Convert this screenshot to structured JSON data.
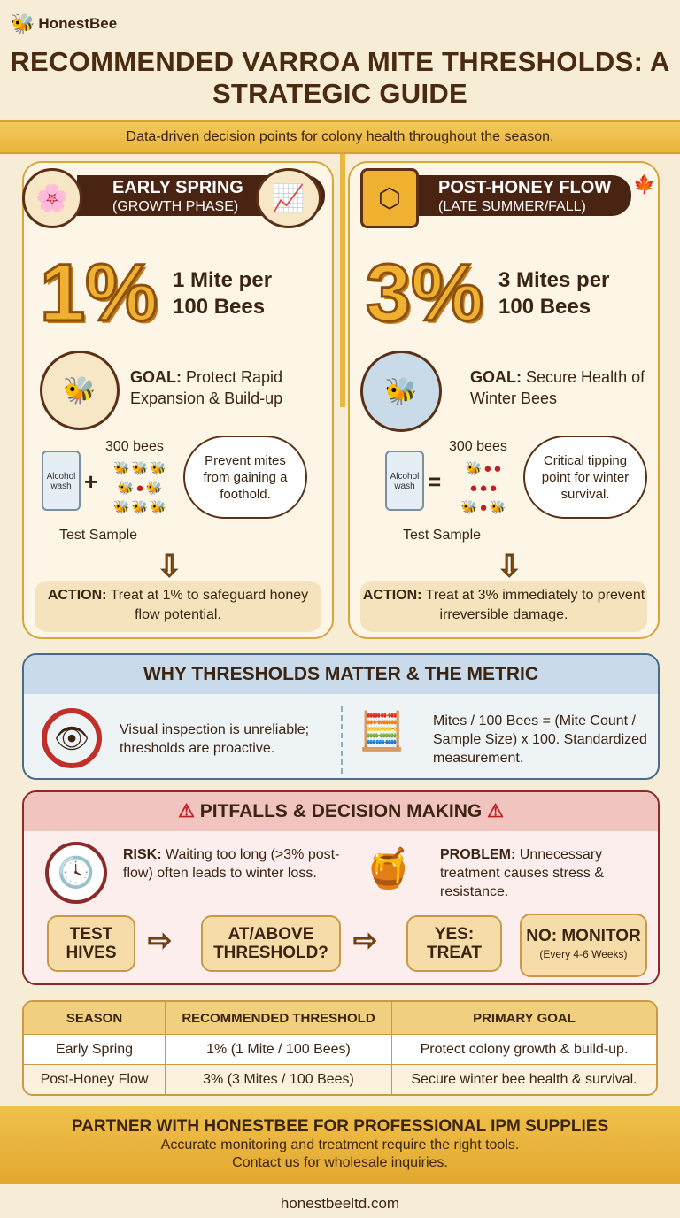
{
  "brand": {
    "name": "HonestBee"
  },
  "title": "RECOMMENDED VARROA MITE THRESHOLDS: A STRATEGIC GUIDE",
  "subtitle": "Data-driven decision points for colony health throughout the season.",
  "cards": [
    {
      "title": "EARLY SPRING",
      "phase": "(GROWTH PHASE)",
      "percent": "1%",
      "rate": "1 Mite per 100 Bees",
      "goal_label": "GOAL:",
      "goal": "Protect Rapid Expansion & Build-up",
      "bottle": "Alcohol wash",
      "operator": "+",
      "bees_label": "300 bees",
      "sample_label": "Test Sample",
      "cloud": "Prevent mites from gaining a foothold.",
      "action_label": "ACTION:",
      "action": "Treat at 1% to safeguard honey flow potential."
    },
    {
      "title": "POST-HONEY FLOW",
      "phase": "(LATE SUMMER/FALL)",
      "percent": "3%",
      "rate": "3 Mites per 100 Bees",
      "goal_label": "GOAL:",
      "goal": "Secure Health of Winter Bees",
      "bottle": "Alcohol wash",
      "operator": "=",
      "bees_label": "300 bees",
      "sample_label": "Test Sample",
      "cloud": "Critical tipping point for winter survival.",
      "action_label": "ACTION:",
      "action": "Treat at 3% immediately to prevent irreversible damage."
    }
  ],
  "why": {
    "title": "WHY THRESHOLDS MATTER & THE METRIC",
    "left": "Visual inspection is unreliable; thresholds are proactive.",
    "right": "Mites / 100 Bees = (Mite Count / Sample Size) x 100. Standardized measurement."
  },
  "pitfalls": {
    "title": "PITFALLS & DECISION MAKING",
    "risk_label": "RISK:",
    "risk": "Waiting too long (>3% post-flow) often leads to winter loss.",
    "problem_label": "PROBLEM:",
    "problem": "Unnecessary treatment causes stress & resistance.",
    "flow": [
      {
        "label": "TEST HIVES"
      },
      {
        "label": "AT/ABOVE THRESHOLD?"
      },
      {
        "label": "YES: TREAT"
      },
      {
        "label": "NO: MONITOR",
        "note": "(Every 4-6 Weeks)"
      }
    ]
  },
  "table": {
    "headers": [
      "SEASON",
      "RECOMMENDED THRESHOLD",
      "PRIMARY GOAL"
    ],
    "rows": [
      [
        "Early Spring",
        "1% (1 Mite / 100 Bees)",
        "Protect colony growth & build-up."
      ],
      [
        "Post-Honey Flow",
        "3% (3 Mites / 100 Bees)",
        "Secure winter bee health & survival."
      ]
    ]
  },
  "footer": {
    "title": "PARTNER WITH HONESTBEE FOR PROFESSIONAL IPM SUPPLIES",
    "line1": "Accurate monitoring and treatment require the right tools.",
    "line2": "Contact us for wholesale inquiries.",
    "url": "honestbeeltd.com"
  },
  "colors": {
    "accent": "#e9b53d",
    "brown": "#4a2412",
    "why_border": "#4a6a8a",
    "pitfall_border": "#8a2a2a"
  }
}
